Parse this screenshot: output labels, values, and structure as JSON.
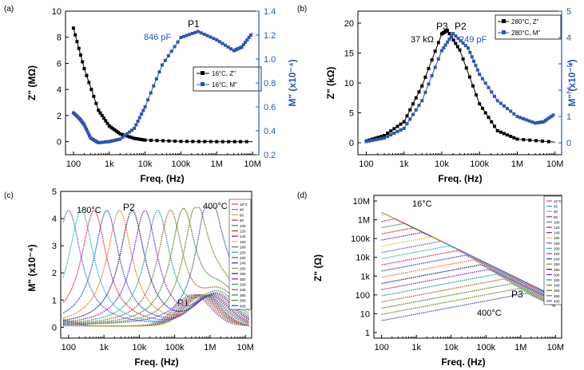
{
  "colors": {
    "z": "#000000",
    "m": "#2a56b4",
    "palette": [
      "#e84a9a",
      "#2fa0d8",
      "#e8a020",
      "#c8288c",
      "#18a060",
      "#b83030",
      "#7b2fa8",
      "#e8d010",
      "#6060e0",
      "#18c0c0",
      "#e02860",
      "#2850d0",
      "#f07818",
      "#1a2a8a",
      "#8c2ab8",
      "#20a878",
      "#a06a30",
      "#4a8a2a",
      "#6a8a20",
      "#3a5aa8"
    ]
  },
  "panels": {
    "a": {
      "label": "(a)",
      "xlabel": "Freq. (Hz)",
      "ylabel": "Z\" (MΩ)",
      "y2label": "M\" (x10⁻⁴)",
      "peak": "P1",
      "annot": "846 pF",
      "legend": [
        "16°C, Z\"",
        "16°C, M\""
      ]
    },
    "b": {
      "label": "(b)",
      "xlabel": "Freq. (Hz)",
      "ylabel": "Z\" (kΩ)",
      "y2label": "M\" (x10⁻⁴)",
      "peak_z": "P3",
      "peak_m": "P2",
      "annot_z": "37 kΩ",
      "annot_m": "249 pF",
      "legend": [
        "280°C, Z\"",
        "280°C, M\""
      ]
    },
    "c": {
      "label": "(c)",
      "xlabel": "Freq. (Hz)",
      "ylabel": "M\" (x10⁻⁴)",
      "annot_low": "180°C",
      "annot_high": "400°C",
      "peak_p1": "P1",
      "peak_p2": "P2"
    },
    "d": {
      "label": "(d)",
      "xlabel": "Freq. (Hz)",
      "ylabel": "Z\" (Ω)",
      "annot_low": "16°C",
      "annot_high": "400°C",
      "peak": "P3"
    }
  },
  "chart_data": [
    {
      "panel": "a",
      "type": "scatter",
      "x_scale": "log",
      "xlim": [
        60,
        15000000
      ],
      "xticks": [
        "100",
        "1k",
        "10k",
        "100k",
        "1M",
        "10M"
      ],
      "ylim": [
        -1,
        10
      ],
      "yticks": [
        "0",
        "2",
        "4",
        "6",
        "8",
        "10"
      ],
      "y2lim": [
        0.2,
        1.4
      ],
      "y2ticks": [
        "0.2",
        "0.4",
        "0.6",
        "0.8",
        "1.0",
        "1.2",
        "1.4"
      ],
      "series": [
        {
          "name": "16°C, Z\"",
          "marker": "square-filled",
          "x": [
            100,
            200,
            500,
            1000,
            2000,
            5000,
            10000,
            100000,
            1000000,
            10000000
          ],
          "y": [
            8.7,
            5.6,
            2.4,
            1.2,
            0.6,
            0.25,
            0.12,
            0.02,
            0.0,
            0.0
          ]
        },
        {
          "name": "16°C, M\"",
          "marker": "square-half",
          "axis": "right",
          "x": [
            100,
            150,
            200,
            300,
            500,
            1000,
            2000,
            5000,
            10000,
            30000,
            100000,
            300000,
            1000000,
            3000000,
            5000000,
            10000000
          ],
          "y": [
            0.55,
            0.5,
            0.45,
            0.34,
            0.3,
            0.31,
            0.33,
            0.42,
            0.6,
            0.95,
            1.18,
            1.23,
            1.16,
            1.07,
            1.1,
            1.22
          ]
        }
      ]
    },
    {
      "panel": "b",
      "type": "scatter",
      "x_scale": "log",
      "xlim": [
        60,
        15000000
      ],
      "xticks": [
        "100",
        "1k",
        "10k",
        "100k",
        "1M",
        "10M"
      ],
      "ylim": [
        -2,
        22
      ],
      "yticks": [
        "0",
        "5",
        "10",
        "15",
        "20"
      ],
      "y2lim": [
        -0.45,
        5
      ],
      "y2ticks": [
        "0",
        "1",
        "2",
        "3",
        "4",
        "5"
      ],
      "series": [
        {
          "name": "280°C, Z\"",
          "marker": "square-filled",
          "x": [
            100,
            300,
            1000,
            3000,
            10000,
            14000,
            30000,
            100000,
            300000,
            1000000,
            10000000
          ],
          "y": [
            0.3,
            1.2,
            3.5,
            9.5,
            18.2,
            18.8,
            15.5,
            6.5,
            2.0,
            0.6,
            0.1
          ]
        },
        {
          "name": "280°C, M\"",
          "marker": "square-half",
          "axis": "right",
          "x": [
            100,
            300,
            1000,
            3000,
            10000,
            20000,
            50000,
            100000,
            300000,
            1000000,
            3000000,
            5000000,
            10000000
          ],
          "y": [
            0.05,
            0.18,
            0.55,
            1.6,
            3.5,
            4.15,
            3.6,
            2.6,
            1.6,
            1.0,
            0.75,
            0.8,
            1.1
          ]
        }
      ]
    },
    {
      "panel": "c",
      "type": "line",
      "x_scale": "log",
      "xlim": [
        60,
        15000000
      ],
      "xticks": [
        "100",
        "1k",
        "10k",
        "100k",
        "1M",
        "10M"
      ],
      "ylim": [
        -0.4,
        5
      ],
      "yticks": [
        "0",
        "1",
        "2",
        "3",
        "4",
        "5"
      ],
      "legend": [
        "16°C",
        "40",
        "60",
        "80",
        "100",
        "120",
        "140",
        "160",
        "180",
        "200",
        "220",
        "240",
        "260",
        "280",
        "300",
        "320",
        "340",
        "360",
        "380",
        "400"
      ],
      "series_note": "M'' spectra vs frequency; P2 peak shifts from ~100 Hz (180°C) to ~2 MHz (400°C), height ~4.3; P1 peak ~1.2 at 0.3–3 MHz"
    },
    {
      "panel": "d",
      "type": "line",
      "x_scale": "log",
      "y_scale": "log",
      "xlim": [
        60,
        15000000
      ],
      "ylim": [
        0.5,
        20000000
      ],
      "xticks": [
        "100",
        "1k",
        "10k",
        "100k",
        "1M",
        "10M"
      ],
      "yticks": [
        "1",
        "10",
        "100",
        "1k",
        "10k",
        "100k",
        "1M",
        "10M"
      ],
      "legend": [
        "16°C",
        "40",
        "60",
        "80",
        "100",
        "120",
        "140",
        "160",
        "180",
        "200",
        "220",
        "240",
        "260",
        "280",
        "300",
        "320",
        "340",
        "360",
        "380",
        "400"
      ],
      "series_note": "Z'' spectra: all converge to ~80 Ω at 10 MHz; 16°C starts ~8M at 100 Hz; 400°C peak (P3) ~300 at ~1 MHz"
    }
  ]
}
